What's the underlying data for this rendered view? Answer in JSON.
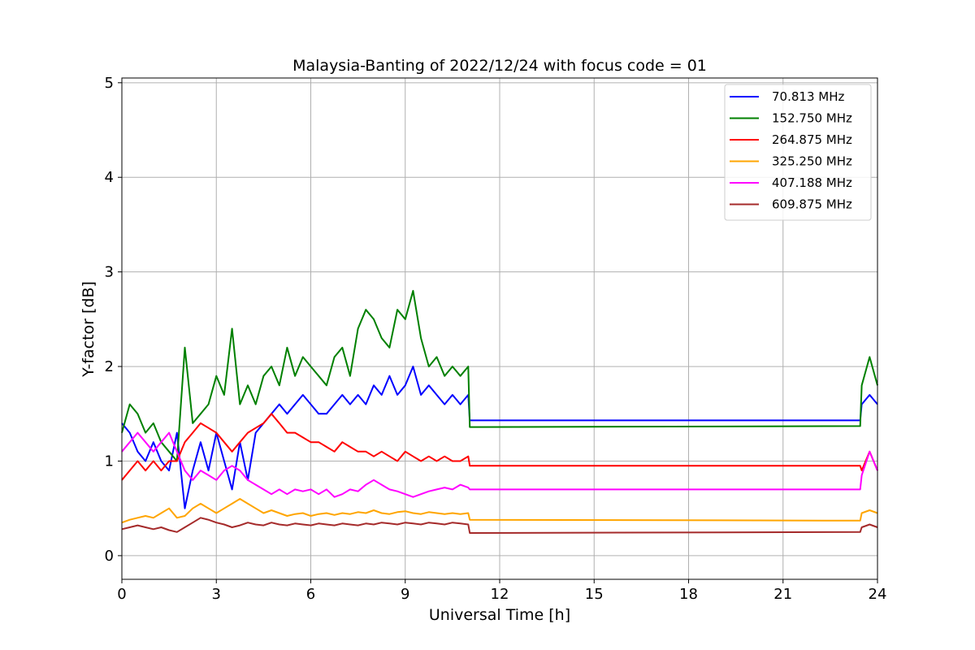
{
  "chart_data": {
    "type": "line",
    "title": "Malaysia-Banting of 2022/12/24 with focus code = 01",
    "xlabel": "Universal Time [h]",
    "ylabel": "Y-factor [dB]",
    "xlim": [
      0,
      24
    ],
    "ylim": [
      -0.25,
      5.05
    ],
    "xticks": [
      0,
      3,
      6,
      9,
      12,
      15,
      18,
      21,
      24
    ],
    "xtick_labels": [
      "0",
      "3",
      "6",
      "9",
      "12",
      "15",
      "18",
      "21",
      "24"
    ],
    "yticks": [
      0,
      1,
      2,
      3,
      4,
      5
    ],
    "ytick_labels": [
      "0",
      "1",
      "2",
      "3",
      "4",
      "5"
    ],
    "grid": true,
    "legend_position": "top-right",
    "series": [
      {
        "name": " 70.813 MHz",
        "color": "#0000ff",
        "x": [
          0,
          0.25,
          0.5,
          0.75,
          1,
          1.25,
          1.5,
          1.75,
          2,
          2.25,
          2.5,
          2.75,
          3,
          3.25,
          3.5,
          3.75,
          4,
          4.25,
          4.5,
          4.75,
          5,
          5.25,
          5.5,
          5.75,
          6,
          6.25,
          6.5,
          6.75,
          7,
          7.25,
          7.5,
          7.75,
          8,
          8.25,
          8.5,
          8.75,
          9,
          9.25,
          9.5,
          9.75,
          10,
          10.25,
          10.5,
          10.75,
          11,
          11.05,
          23.45,
          23.5,
          23.75,
          24
        ],
        "y": [
          1.4,
          1.3,
          1.1,
          1.0,
          1.2,
          1.0,
          0.9,
          1.3,
          0.5,
          0.9,
          1.2,
          0.9,
          1.3,
          1.0,
          0.7,
          1.2,
          0.8,
          1.3,
          1.4,
          1.5,
          1.6,
          1.5,
          1.6,
          1.7,
          1.6,
          1.5,
          1.5,
          1.6,
          1.7,
          1.6,
          1.7,
          1.6,
          1.8,
          1.7,
          1.9,
          1.7,
          1.8,
          2.0,
          1.7,
          1.8,
          1.7,
          1.6,
          1.7,
          1.6,
          1.7,
          1.43,
          1.43,
          1.6,
          1.7,
          1.6
        ]
      },
      {
        "name": "152.750 MHz",
        "color": "#008000",
        "x": [
          0,
          0.25,
          0.5,
          0.75,
          1,
          1.25,
          1.5,
          1.75,
          2,
          2.25,
          2.5,
          2.75,
          3,
          3.25,
          3.5,
          3.75,
          4,
          4.25,
          4.5,
          4.75,
          5,
          5.25,
          5.5,
          5.75,
          6,
          6.25,
          6.5,
          6.75,
          7,
          7.25,
          7.5,
          7.75,
          8,
          8.25,
          8.5,
          8.75,
          9,
          9.25,
          9.5,
          9.75,
          10,
          10.25,
          10.5,
          10.75,
          11,
          11.05,
          23.45,
          23.5,
          23.75,
          24
        ],
        "y": [
          1.3,
          1.6,
          1.5,
          1.3,
          1.4,
          1.2,
          1.1,
          1.0,
          2.2,
          1.4,
          1.5,
          1.6,
          1.9,
          1.7,
          2.4,
          1.6,
          1.8,
          1.6,
          1.9,
          2.0,
          1.8,
          2.2,
          1.9,
          2.1,
          2.0,
          1.9,
          1.8,
          2.1,
          2.2,
          1.9,
          2.4,
          2.6,
          2.5,
          2.3,
          2.2,
          2.6,
          2.5,
          2.8,
          2.3,
          2.0,
          2.1,
          1.9,
          2.0,
          1.9,
          2.0,
          1.36,
          1.37,
          1.8,
          2.1,
          1.8
        ]
      },
      {
        "name": "264.875 MHz",
        "color": "#ff0000",
        "x": [
          0,
          0.25,
          0.5,
          0.75,
          1,
          1.25,
          1.5,
          1.75,
          2,
          2.25,
          2.5,
          2.75,
          3,
          3.25,
          3.5,
          3.75,
          4,
          4.25,
          4.5,
          4.75,
          5,
          5.25,
          5.5,
          5.75,
          6,
          6.25,
          6.5,
          6.75,
          7,
          7.25,
          7.5,
          7.75,
          8,
          8.25,
          8.5,
          8.75,
          9,
          9.25,
          9.5,
          9.75,
          10,
          10.25,
          10.5,
          10.75,
          11,
          11.05,
          23.45,
          23.5,
          23.75,
          24
        ],
        "y": [
          0.8,
          0.9,
          1.0,
          0.9,
          1.0,
          0.9,
          1.0,
          1.0,
          1.2,
          1.3,
          1.4,
          1.35,
          1.3,
          1.2,
          1.1,
          1.2,
          1.3,
          1.35,
          1.4,
          1.5,
          1.4,
          1.3,
          1.3,
          1.25,
          1.2,
          1.2,
          1.15,
          1.1,
          1.2,
          1.15,
          1.1,
          1.1,
          1.05,
          1.1,
          1.05,
          1.0,
          1.1,
          1.05,
          1.0,
          1.05,
          1.0,
          1.05,
          1.0,
          1.0,
          1.05,
          0.95,
          0.95,
          0.9,
          1.1,
          0.9
        ]
      },
      {
        "name": "325.250 MHz",
        "color": "#ffa500",
        "x": [
          0,
          0.25,
          0.5,
          0.75,
          1,
          1.25,
          1.5,
          1.75,
          2,
          2.25,
          2.5,
          2.75,
          3,
          3.25,
          3.5,
          3.75,
          4,
          4.25,
          4.5,
          4.75,
          5,
          5.25,
          5.5,
          5.75,
          6,
          6.25,
          6.5,
          6.75,
          7,
          7.25,
          7.5,
          7.75,
          8,
          8.25,
          8.5,
          8.75,
          9,
          9.25,
          9.5,
          9.75,
          10,
          10.25,
          10.5,
          10.75,
          11,
          11.05,
          23.45,
          23.5,
          23.75,
          24
        ],
        "y": [
          0.35,
          0.38,
          0.4,
          0.42,
          0.4,
          0.45,
          0.5,
          0.4,
          0.42,
          0.5,
          0.55,
          0.5,
          0.45,
          0.5,
          0.55,
          0.6,
          0.55,
          0.5,
          0.45,
          0.48,
          0.45,
          0.42,
          0.44,
          0.45,
          0.42,
          0.44,
          0.45,
          0.43,
          0.45,
          0.44,
          0.46,
          0.45,
          0.48,
          0.45,
          0.44,
          0.46,
          0.47,
          0.45,
          0.44,
          0.46,
          0.45,
          0.44,
          0.45,
          0.44,
          0.45,
          0.38,
          0.37,
          0.45,
          0.48,
          0.45
        ]
      },
      {
        "name": "407.188 MHz",
        "color": "#ff00ff",
        "x": [
          0,
          0.25,
          0.5,
          0.75,
          1,
          1.25,
          1.5,
          1.75,
          2,
          2.25,
          2.5,
          2.75,
          3,
          3.25,
          3.5,
          3.75,
          4,
          4.25,
          4.5,
          4.75,
          5,
          5.25,
          5.5,
          5.75,
          6,
          6.25,
          6.5,
          6.75,
          7,
          7.25,
          7.5,
          7.75,
          8,
          8.25,
          8.5,
          8.75,
          9,
          9.25,
          9.5,
          9.75,
          10,
          10.25,
          10.5,
          10.75,
          11,
          11.05,
          23.45,
          23.5,
          23.75,
          24
        ],
        "y": [
          1.1,
          1.2,
          1.3,
          1.2,
          1.1,
          1.2,
          1.3,
          1.1,
          0.9,
          0.8,
          0.9,
          0.85,
          0.8,
          0.9,
          0.95,
          0.9,
          0.8,
          0.75,
          0.7,
          0.65,
          0.7,
          0.65,
          0.7,
          0.68,
          0.7,
          0.65,
          0.7,
          0.62,
          0.65,
          0.7,
          0.68,
          0.75,
          0.8,
          0.75,
          0.7,
          0.68,
          0.65,
          0.62,
          0.65,
          0.68,
          0.7,
          0.72,
          0.7,
          0.75,
          0.72,
          0.7,
          0.7,
          0.85,
          1.1,
          0.9
        ]
      },
      {
        "name": "609.875 MHz",
        "color": "#a52a2a",
        "x": [
          0,
          0.25,
          0.5,
          0.75,
          1,
          1.25,
          1.5,
          1.75,
          2,
          2.25,
          2.5,
          2.75,
          3,
          3.25,
          3.5,
          3.75,
          4,
          4.25,
          4.5,
          4.75,
          5,
          5.25,
          5.5,
          5.75,
          6,
          6.25,
          6.5,
          6.75,
          7,
          7.25,
          7.5,
          7.75,
          8,
          8.25,
          8.5,
          8.75,
          9,
          9.25,
          9.5,
          9.75,
          10,
          10.25,
          10.5,
          10.75,
          11,
          11.05,
          23.45,
          23.5,
          23.75,
          24
        ],
        "y": [
          0.28,
          0.3,
          0.32,
          0.3,
          0.28,
          0.3,
          0.27,
          0.25,
          0.3,
          0.35,
          0.4,
          0.38,
          0.35,
          0.33,
          0.3,
          0.32,
          0.35,
          0.33,
          0.32,
          0.35,
          0.33,
          0.32,
          0.34,
          0.33,
          0.32,
          0.34,
          0.33,
          0.32,
          0.34,
          0.33,
          0.32,
          0.34,
          0.33,
          0.35,
          0.34,
          0.33,
          0.35,
          0.34,
          0.33,
          0.35,
          0.34,
          0.33,
          0.35,
          0.34,
          0.33,
          0.24,
          0.25,
          0.3,
          0.33,
          0.3
        ]
      }
    ]
  }
}
